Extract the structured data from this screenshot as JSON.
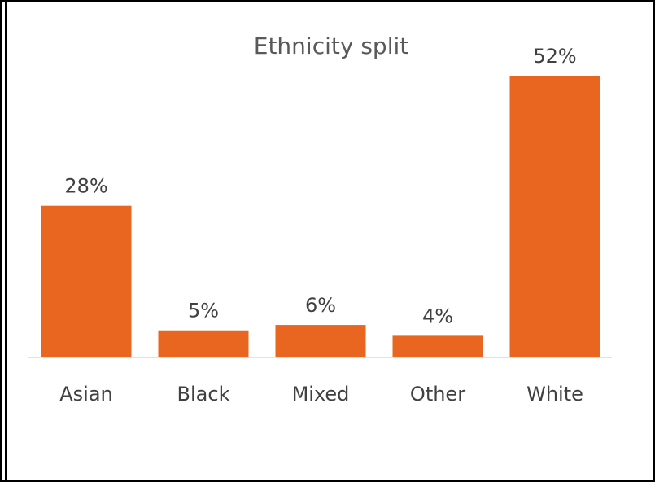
{
  "chart_data": {
    "type": "bar",
    "title": "Ethnicity split",
    "xlabel": "",
    "ylabel": "",
    "categories": [
      "Asian",
      "Black",
      "Mixed",
      "Other",
      "White"
    ],
    "values": [
      28,
      5,
      6,
      4,
      52
    ],
    "data_labels": [
      "28%",
      "5%",
      "6%",
      "4%",
      "52%"
    ],
    "unit": "%",
    "ylim": [
      0,
      52
    ],
    "grid": false,
    "legend": "none",
    "bar_color": "#E8661F",
    "axis_color": "#D9D9D9",
    "text_color": "#404040",
    "title_color": "#595959"
  }
}
